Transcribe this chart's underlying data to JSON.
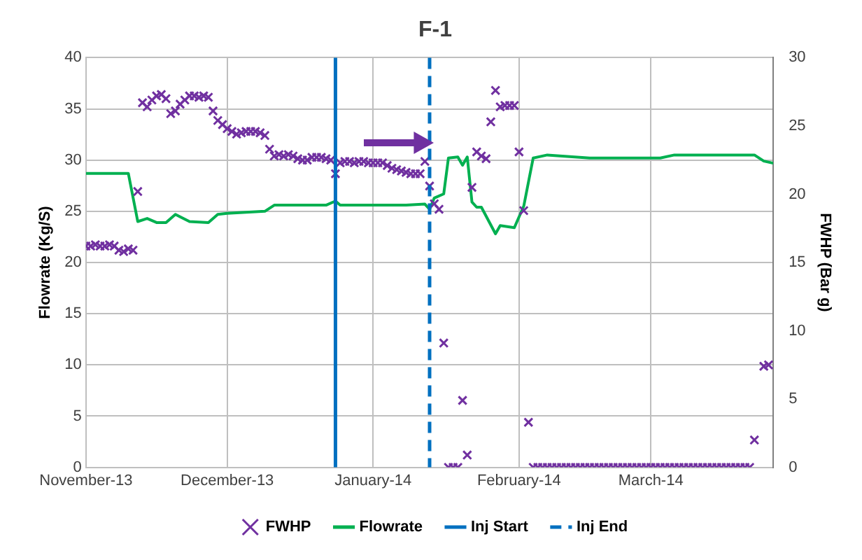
{
  "chart_data": {
    "type": "scatter",
    "title": "F-1",
    "ylabel": "Flowrate (Kg/S)",
    "y2label": "FWHP (Bar g)",
    "xlim": [
      "2013-11-01",
      "2014-03-27"
    ],
    "xticks": [
      {
        "value": "2013-11-01",
        "label": "November-13"
      },
      {
        "value": "2013-12-01",
        "label": "December-13"
      },
      {
        "value": "2014-01-01",
        "label": "January-14"
      },
      {
        "value": "2014-02-01",
        "label": "February-14"
      },
      {
        "value": "2014-03-01",
        "label": "March-14"
      }
    ],
    "ylim": [
      0,
      40
    ],
    "yticks": [
      0,
      5,
      10,
      15,
      20,
      25,
      30,
      35,
      40
    ],
    "y2lim": [
      0,
      30
    ],
    "y2ticks": [
      0,
      5,
      10,
      15,
      20,
      25,
      30
    ],
    "grid": true,
    "legend": "bottom",
    "series": [
      {
        "name": "FWHP",
        "axis": "y2",
        "marker": "cross",
        "color": "#7030a0",
        "x": [
          "2013-11-01",
          "2013-11-02",
          "2013-11-03",
          "2013-11-04",
          "2013-11-05",
          "2013-11-06",
          "2013-11-07",
          "2013-11-08",
          "2013-11-09",
          "2013-11-10",
          "2013-11-11",
          "2013-11-12",
          "2013-11-13",
          "2013-11-14",
          "2013-11-15",
          "2013-11-16",
          "2013-11-17",
          "2013-11-18",
          "2013-11-19",
          "2013-11-20",
          "2013-11-21",
          "2013-11-22",
          "2013-11-23",
          "2013-11-24",
          "2013-11-25",
          "2013-11-26",
          "2013-11-27",
          "2013-11-28",
          "2013-11-29",
          "2013-11-30",
          "2013-12-01",
          "2013-12-02",
          "2013-12-03",
          "2013-12-04",
          "2013-12-05",
          "2013-12-06",
          "2013-12-07",
          "2013-12-08",
          "2013-12-09",
          "2013-12-10",
          "2013-12-11",
          "2013-12-12",
          "2013-12-13",
          "2013-12-14",
          "2013-12-15",
          "2013-12-16",
          "2013-12-17",
          "2013-12-18",
          "2013-12-19",
          "2013-12-20",
          "2013-12-21",
          "2013-12-22",
          "2013-12-23",
          "2013-12-24",
          "2013-12-25",
          "2013-12-26",
          "2013-12-27",
          "2013-12-28",
          "2013-12-29",
          "2013-12-30",
          "2013-12-31",
          "2014-01-01",
          "2014-01-02",
          "2014-01-03",
          "2014-01-04",
          "2014-01-05",
          "2014-01-06",
          "2014-01-07",
          "2014-01-08",
          "2014-01-09",
          "2014-01-10",
          "2014-01-11",
          "2014-01-12",
          "2014-01-13",
          "2014-01-14",
          "2014-01-15",
          "2014-01-16",
          "2014-01-17",
          "2014-01-18",
          "2014-01-19",
          "2014-01-20",
          "2014-01-21",
          "2014-01-22",
          "2014-01-23",
          "2014-01-24",
          "2014-01-25",
          "2014-01-26",
          "2014-01-27",
          "2014-01-28",
          "2014-01-29",
          "2014-01-30",
          "2014-01-31",
          "2014-02-01",
          "2014-02-02",
          "2014-02-03",
          "2014-02-04",
          "2014-02-05",
          "2014-02-06",
          "2014-02-07",
          "2014-02-08",
          "2014-02-09",
          "2014-02-10",
          "2014-02-11",
          "2014-02-12",
          "2014-02-13",
          "2014-02-14",
          "2014-02-15",
          "2014-02-16",
          "2014-02-17",
          "2014-02-18",
          "2014-02-19",
          "2014-02-20",
          "2014-02-21",
          "2014-02-22",
          "2014-02-23",
          "2014-02-24",
          "2014-02-25",
          "2014-02-26",
          "2014-02-27",
          "2014-02-28",
          "2014-03-01",
          "2014-03-02",
          "2014-03-03",
          "2014-03-04",
          "2014-03-05",
          "2014-03-06",
          "2014-03-07",
          "2014-03-08",
          "2014-03-09",
          "2014-03-10",
          "2014-03-11",
          "2014-03-12",
          "2014-03-13",
          "2014-03-14",
          "2014-03-15",
          "2014-03-16",
          "2014-03-17",
          "2014-03-18",
          "2014-03-19",
          "2014-03-20",
          "2014-03-21",
          "2014-03-22",
          "2014-03-23",
          "2014-03-25",
          "2014-03-26"
        ],
        "values": [
          16.2,
          16.2,
          16.3,
          16.2,
          16.2,
          16.3,
          16.2,
          15.9,
          15.8,
          16.0,
          15.9,
          20.2,
          26.7,
          26.4,
          26.9,
          27.2,
          27.3,
          27.0,
          25.9,
          26.1,
          26.6,
          26.9,
          27.2,
          27.2,
          27.1,
          27.2,
          27.1,
          26.1,
          25.4,
          25.1,
          24.8,
          24.6,
          24.4,
          24.5,
          24.6,
          24.6,
          24.6,
          24.5,
          24.3,
          23.3,
          22.8,
          22.9,
          22.8,
          22.9,
          22.8,
          22.6,
          22.5,
          22.5,
          22.7,
          22.7,
          22.7,
          22.6,
          22.5,
          21.5,
          22.3,
          22.4,
          22.4,
          22.3,
          22.4,
          22.4,
          22.3,
          22.3,
          22.3,
          22.3,
          22.1,
          21.9,
          21.8,
          21.7,
          21.6,
          21.5,
          21.5,
          21.5,
          22.4,
          20.6,
          19.3,
          18.9,
          9.1,
          0,
          0,
          0,
          4.9,
          0.9,
          20.5,
          23.1,
          22.8,
          22.6,
          25.3,
          27.6,
          26.4,
          26.5,
          26.5,
          26.5,
          23.1,
          18.8,
          3.3,
          0,
          0,
          0,
          0,
          0,
          0,
          0,
          0,
          0,
          0,
          0,
          0,
          0,
          0,
          0,
          0,
          0,
          0,
          0,
          0,
          0,
          0,
          0,
          0,
          0,
          0,
          0,
          0,
          0,
          0,
          0,
          0,
          0,
          0,
          0,
          0,
          0,
          0,
          0,
          0,
          0,
          0,
          0,
          0,
          0,
          0,
          0,
          2.0,
          7.4,
          7.5
        ]
      },
      {
        "name": "Flowrate",
        "type": "line",
        "marker": "none",
        "line_style": "solid",
        "color": "#00b050",
        "x": [
          "2013-11-01",
          "2013-11-10",
          "2013-11-12",
          "2013-11-14",
          "2013-11-16",
          "2013-11-18",
          "2013-11-20",
          "2013-11-23",
          "2013-11-27",
          "2013-11-29",
          "2013-12-01",
          "2013-12-09",
          "2013-12-11",
          "2013-12-22",
          "2013-12-24",
          "2013-12-25",
          "2014-01-08",
          "2014-01-12",
          "2014-01-13",
          "2014-01-14",
          "2014-01-16",
          "2014-01-17",
          "2014-01-19",
          "2014-01-20",
          "2014-01-21",
          "2014-01-22",
          "2014-01-23",
          "2014-01-24",
          "2014-01-27",
          "2014-01-28",
          "2014-01-31",
          "2014-02-02",
          "2014-02-04",
          "2014-02-07",
          "2014-02-16",
          "2014-03-03",
          "2014-03-06",
          "2014-03-23",
          "2014-03-25",
          "2014-03-27"
        ],
        "values": [
          28.7,
          28.7,
          24.0,
          24.3,
          23.9,
          23.9,
          24.7,
          24.0,
          23.9,
          24.7,
          24.8,
          25.0,
          25.6,
          25.6,
          26.0,
          25.6,
          25.6,
          25.7,
          25.2,
          26.3,
          26.7,
          30.2,
          30.3,
          29.5,
          30.3,
          25.9,
          25.4,
          25.4,
          22.8,
          23.6,
          23.4,
          25.5,
          30.2,
          30.5,
          30.2,
          30.2,
          30.5,
          30.5,
          29.9,
          29.7
        ]
      }
    ],
    "ref_lines": [
      {
        "axis": "x",
        "value": "2013-12-24",
        "label": "Inj Start",
        "color": "#0070c0",
        "line_style": "solid"
      },
      {
        "axis": "x",
        "value": "2014-01-13",
        "label": "Inj End",
        "color": "#0070c0",
        "line_style": "dashed"
      }
    ]
  }
}
